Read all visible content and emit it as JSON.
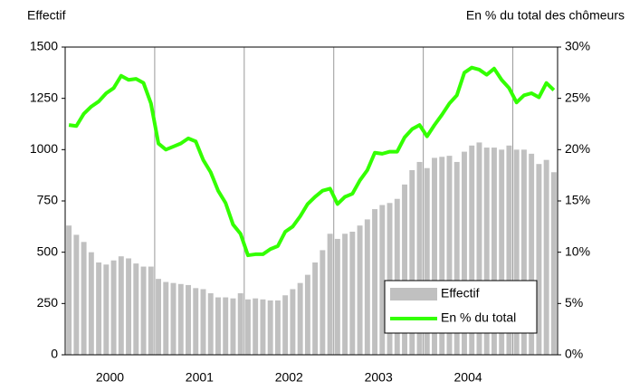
{
  "chart_data": {
    "type": "combo",
    "y_label": "Effectif",
    "y2_label": "En % du total des chômeurs",
    "categories": [
      null,
      null,
      null,
      null,
      null,
      null,
      null,
      null,
      null,
      null,
      null,
      null,
      null,
      null,
      null,
      null,
      null,
      null,
      null,
      null,
      null,
      null,
      null,
      null,
      null,
      null,
      null,
      null,
      null,
      null,
      null,
      null,
      null,
      null,
      null,
      null,
      null,
      null,
      null,
      null,
      null,
      null,
      null,
      null,
      null,
      null,
      null,
      null,
      null,
      null,
      null,
      null,
      null,
      null,
      null,
      null,
      null,
      null,
      null,
      null,
      null,
      null,
      null,
      null,
      null,
      null
    ],
    "year_labels": [
      "2000",
      "2001",
      "2002",
      "2003",
      "2004"
    ],
    "series": [
      {
        "name": "Effectif",
        "type": "bar",
        "color": "#c0c0c0",
        "values": [
          630,
          585,
          550,
          500,
          450,
          440,
          460,
          480,
          470,
          445,
          430,
          430,
          370,
          355,
          350,
          345,
          340,
          325,
          320,
          300,
          280,
          280,
          275,
          300,
          270,
          275,
          270,
          265,
          265,
          290,
          320,
          350,
          390,
          450,
          510,
          590,
          565,
          590,
          600,
          630,
          660,
          710,
          730,
          740,
          760,
          830,
          900,
          940,
          910,
          960,
          965,
          970,
          940,
          990,
          1020,
          1035,
          1010,
          1010,
          1000,
          1020,
          1000,
          1000,
          980,
          930,
          950,
          890
        ]
      },
      {
        "name": "En % du total",
        "type": "line",
        "axis": "y2",
        "color": "#33ff00",
        "values": [
          22.4,
          22.3,
          23.5,
          24.2,
          24.7,
          25.5,
          26.0,
          27.2,
          26.8,
          26.9,
          26.5,
          24.5,
          20.6,
          20.0,
          20.3,
          20.6,
          21.1,
          20.8,
          19.0,
          17.8,
          16.0,
          14.8,
          12.7,
          11.8,
          9.7,
          9.8,
          9.8,
          10.3,
          10.6,
          12.0,
          12.5,
          13.5,
          14.7,
          15.4,
          16.0,
          16.2,
          14.7,
          15.4,
          15.7,
          17.0,
          18.0,
          19.7,
          19.6,
          19.8,
          19.8,
          21.2,
          22.0,
          22.4,
          21.3,
          22.4,
          23.4,
          24.5,
          25.3,
          27.5,
          28.0,
          27.8,
          27.3,
          27.9,
          26.8,
          26.0,
          24.6,
          25.3,
          25.5,
          25.1,
          26.5,
          25.8
        ]
      }
    ],
    "ylim": [
      0,
      1500
    ],
    "yticks": [
      0,
      250,
      500,
      750,
      1000,
      1250,
      1500
    ],
    "y2lim": [
      0,
      30
    ],
    "y2ticks": [
      {
        "value": 0,
        "label": "0%"
      },
      {
        "value": 5,
        "label": "5%"
      },
      {
        "value": 10,
        "label": "10%"
      },
      {
        "value": 15,
        "label": "15%"
      },
      {
        "value": 20,
        "label": "20%"
      },
      {
        "value": 25,
        "label": "25%"
      },
      {
        "value": 30,
        "label": "30%"
      }
    ],
    "legend": "lower right"
  }
}
